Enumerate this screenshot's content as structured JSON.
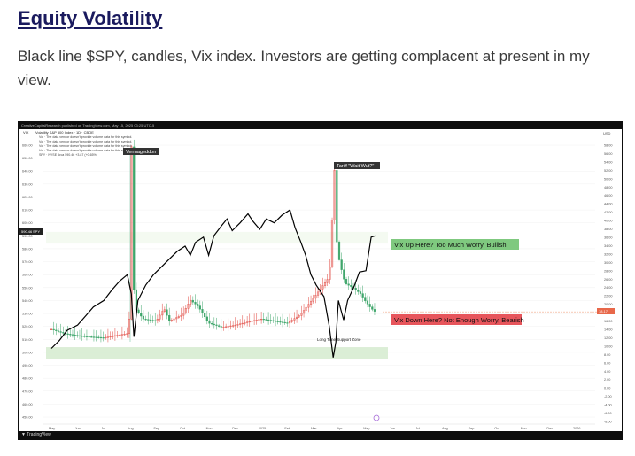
{
  "article": {
    "title": "Equity Volatility",
    "description": "Black line $SPY, candles, Vix index. Investors are getting complacent at present in my view."
  },
  "chart": {
    "header_line": "CreativeCapitalResearch published on TradingView.com, May 15, 2025 03:25 UTC-5",
    "legend": {
      "symbol": "VIX",
      "name_line": "Volatility S&P 500 Index · 1D · CBOE",
      "warnings": [
        "Vol · The data vendor doesn't provide volume data for this symbol.",
        "Vol · The data vendor doesn't provide volume data for this symbol.",
        "Vol · The data vendor doesn't provide volume data for this symbol.",
        "Vol · The data vendor doesn't provide volume data for this symbol."
      ],
      "spy_line": "SPY · NYSE Arca 590.46 +3.87 (+0.65%)"
    },
    "annotations": {
      "vermageddon": "Vermageddon",
      "tariff": "Tariff \"Wait Wut?\"",
      "bullish": "Vix Up Here? Too Much Worry, Bullish",
      "bearish": "Vix Down Here? Not Enough Worry, Bearish",
      "support": "Long Time Support Zone"
    },
    "left_price_badge": "590.46",
    "left_badge_symbol": "SPY",
    "right_price_badge": "18.17",
    "right_axis_label": "USD",
    "footer": "TradingView"
  },
  "chart_data": {
    "type": "line",
    "title": "",
    "x_labels": [
      "May",
      "Jun",
      "Jul",
      "Aug",
      "Sep",
      "Oct",
      "Nov",
      "Dec",
      "2025",
      "Feb",
      "Mar",
      "Apr",
      "May",
      "Jun",
      "Jul",
      "Aug",
      "Sep",
      "Oct",
      "Nov",
      "Dec",
      "2026"
    ],
    "left_axis_ticks": [
      660.0,
      650.0,
      640.0,
      630.0,
      620.0,
      610.0,
      600.0,
      590.0,
      580.0,
      570.0,
      560.0,
      550.0,
      540.0,
      530.0,
      520.0,
      510.0,
      500.0,
      490.0,
      480.0,
      470.0,
      460.0,
      450.0
    ],
    "right_axis_ticks": [
      58.0,
      56.0,
      54.0,
      52.0,
      50.0,
      48.0,
      46.0,
      44.0,
      42.0,
      40.0,
      38.0,
      36.0,
      34.0,
      32.0,
      30.0,
      28.0,
      26.0,
      24.0,
      22.0,
      20.0,
      18.0,
      16.0,
      14.0,
      12.0,
      10.0,
      8.0,
      6.0,
      4.0,
      2.0,
      0.0,
      -2.0,
      -4.0,
      -6.0,
      -8.0
    ],
    "series": [
      {
        "name": "SPY",
        "axis": "left",
        "color": "#000000",
        "points": [
          [
            0,
            503
          ],
          [
            0.3,
            509
          ],
          [
            0.6,
            517
          ],
          [
            1.0,
            521
          ],
          [
            1.3,
            528
          ],
          [
            1.6,
            535
          ],
          [
            2.0,
            540
          ],
          [
            2.3,
            548
          ],
          [
            2.6,
            555
          ],
          [
            2.9,
            560
          ],
          [
            3.05,
            545
          ],
          [
            3.15,
            512
          ],
          [
            3.3,
            540
          ],
          [
            3.6,
            552
          ],
          [
            3.9,
            560
          ],
          [
            4.2,
            566
          ],
          [
            4.5,
            572
          ],
          [
            4.8,
            578
          ],
          [
            5.1,
            582
          ],
          [
            5.3,
            575
          ],
          [
            5.5,
            585
          ],
          [
            5.8,
            589
          ],
          [
            6.0,
            575
          ],
          [
            6.2,
            590
          ],
          [
            6.5,
            598
          ],
          [
            6.7,
            603
          ],
          [
            6.9,
            594
          ],
          [
            7.2,
            600
          ],
          [
            7.5,
            607
          ],
          [
            7.7,
            601
          ],
          [
            7.95,
            595
          ],
          [
            8.2,
            603
          ],
          [
            8.5,
            600
          ],
          [
            8.8,
            606
          ],
          [
            9.1,
            610
          ],
          [
            9.3,
            596
          ],
          [
            9.5,
            586
          ],
          [
            9.7,
            575
          ],
          [
            9.9,
            560
          ],
          [
            10.1,
            552
          ],
          [
            10.4,
            543
          ],
          [
            10.6,
            520
          ],
          [
            10.75,
            496
          ],
          [
            10.85,
            508
          ],
          [
            10.95,
            540
          ],
          [
            11.15,
            525
          ],
          [
            11.3,
            540
          ],
          [
            11.55,
            551
          ],
          [
            11.75,
            562
          ],
          [
            12.0,
            563
          ],
          [
            12.2,
            589
          ],
          [
            12.35,
            590
          ]
        ]
      },
      {
        "name": "VIX",
        "axis": "right",
        "color": "#e0453d",
        "points": [
          [
            0,
            14.0
          ],
          [
            0.5,
            13.0
          ],
          [
            1.0,
            12.5
          ],
          [
            1.5,
            12.2
          ],
          [
            2.0,
            12.0
          ],
          [
            2.5,
            12.6
          ],
          [
            2.9,
            13.0
          ],
          [
            3.0,
            18.0
          ],
          [
            3.05,
            65.0
          ],
          [
            3.1,
            28.0
          ],
          [
            3.2,
            19.0
          ],
          [
            3.5,
            16.5
          ],
          [
            4.0,
            16.0
          ],
          [
            4.3,
            19.0
          ],
          [
            4.5,
            16.0
          ],
          [
            5.0,
            17.5
          ],
          [
            5.3,
            21.0
          ],
          [
            5.6,
            19.5
          ],
          [
            6.0,
            15.5
          ],
          [
            6.5,
            14.5
          ],
          [
            7.0,
            15.0
          ],
          [
            7.5,
            15.8
          ],
          [
            8.0,
            16.5
          ],
          [
            8.5,
            16.0
          ],
          [
            9.0,
            15.5
          ],
          [
            9.5,
            17.5
          ],
          [
            10.0,
            21.5
          ],
          [
            10.3,
            24.0
          ],
          [
            10.6,
            26.5
          ],
          [
            10.75,
            45.0
          ],
          [
            10.8,
            52.0
          ],
          [
            10.9,
            33.0
          ],
          [
            11.0,
            30.0
          ],
          [
            11.2,
            25.0
          ],
          [
            11.5,
            24.0
          ],
          [
            11.8,
            22.5
          ],
          [
            12.0,
            20.5
          ],
          [
            12.2,
            19.0
          ],
          [
            12.35,
            18.2
          ]
        ]
      }
    ]
  }
}
